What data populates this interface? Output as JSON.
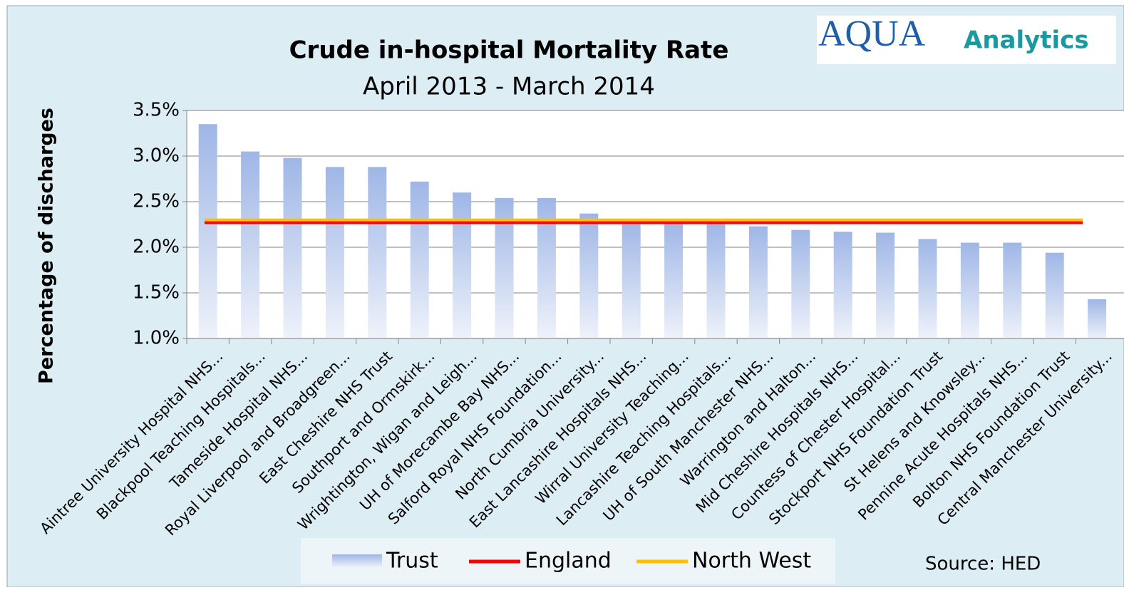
{
  "chart_data": {
    "type": "bar",
    "title": "Crude in-hospital Mortality Rate",
    "subtitle": "April 2013 - March 2014",
    "y_label": "Percentage of discharges",
    "logo": {
      "brand": "AQUA",
      "suffix": "Analytics"
    },
    "source": "Source: HED",
    "categories": [
      "Aintree University Hospital NHS...",
      "Blackpool Teaching Hospitals...",
      "Tameside Hospital NHS...",
      "Royal Liverpool and Broadgreen...",
      "East Cheshire NHS Trust",
      "Southport and Ormskirk...",
      "Wrightington, Wigan and Leigh...",
      "UH of Morecambe Bay NHS...",
      "Salford Royal NHS Foundation...",
      "North Cumbria University...",
      "East Lancashire Hospitals NHS...",
      "Wirral University Teaching...",
      "Lancashire Teaching Hospitals...",
      "UH of South Manchester NHS...",
      "Warrington and Halton...",
      "Mid Cheshire Hospitals NHS...",
      "Countess of Chester Hospital...",
      "Stockport NHS Foundation Trust",
      "St Helens and Knowsley...",
      "Pennine Acute Hospitals NHS...",
      "Bolton NHS Foundation Trust",
      "Central Manchester University..."
    ],
    "series": [
      {
        "name": "Trust",
        "color": "#9fb6e6",
        "values": [
          3.35,
          3.05,
          2.98,
          2.88,
          2.88,
          2.72,
          2.6,
          2.54,
          2.54,
          2.37,
          2.28,
          2.27,
          2.26,
          2.23,
          2.19,
          2.17,
          2.16,
          2.09,
          2.05,
          2.05,
          1.94,
          1.43
        ]
      }
    ],
    "lines": [
      {
        "name": "England",
        "color": "#ff0000",
        "value": 2.27
      },
      {
        "name": "North West",
        "color": "#ffc000",
        "value": 2.3
      }
    ],
    "ylim": [
      1.0,
      3.5
    ],
    "yticks": [
      {
        "value": 1.0,
        "label": "1.0%"
      },
      {
        "value": 1.5,
        "label": "1.5%"
      },
      {
        "value": 2.0,
        "label": "2.0%"
      },
      {
        "value": 2.5,
        "label": "2.5%"
      },
      {
        "value": 3.0,
        "label": "3.0%"
      },
      {
        "value": 3.5,
        "label": "3.5%"
      }
    ],
    "grid": true
  }
}
